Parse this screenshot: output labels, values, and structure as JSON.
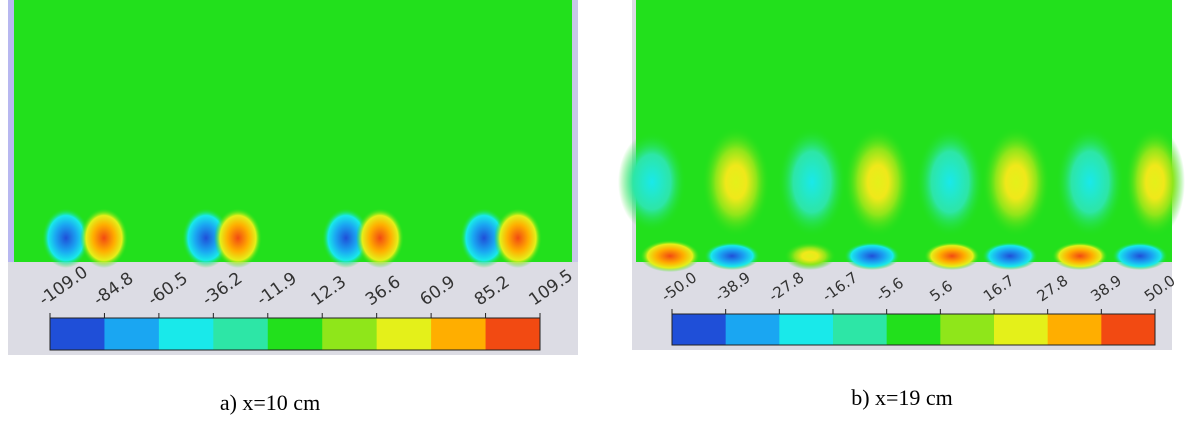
{
  "panels": [
    {
      "caption": "a) x=10 cm",
      "colorbar": {
        "ticks": [
          "-109.0",
          "-84.8",
          "-60.5",
          "-36.2",
          "-11.9",
          "12.3",
          "36.6",
          "60.9",
          "85.2",
          "109.5"
        ],
        "colors": [
          "#1f4fd8",
          "#1aa6f2",
          "#19e9ea",
          "#2de6a6",
          "#22e01c",
          "#8fe61a",
          "#e4f01a",
          "#ffae00",
          "#f24a12"
        ]
      }
    },
    {
      "caption": "b) x=19 cm",
      "colorbar": {
        "ticks": [
          "-50.0",
          "-38.9",
          "-27.8",
          "-16.7",
          "-5.6",
          "5.6",
          "16.7",
          "27.8",
          "38.9",
          "50.0"
        ],
        "colors": [
          "#1f4fd8",
          "#1aa6f2",
          "#19e9ea",
          "#2de6a6",
          "#22e01c",
          "#8fe61a",
          "#e4f01a",
          "#ffae00",
          "#f24a12"
        ]
      }
    }
  ]
}
